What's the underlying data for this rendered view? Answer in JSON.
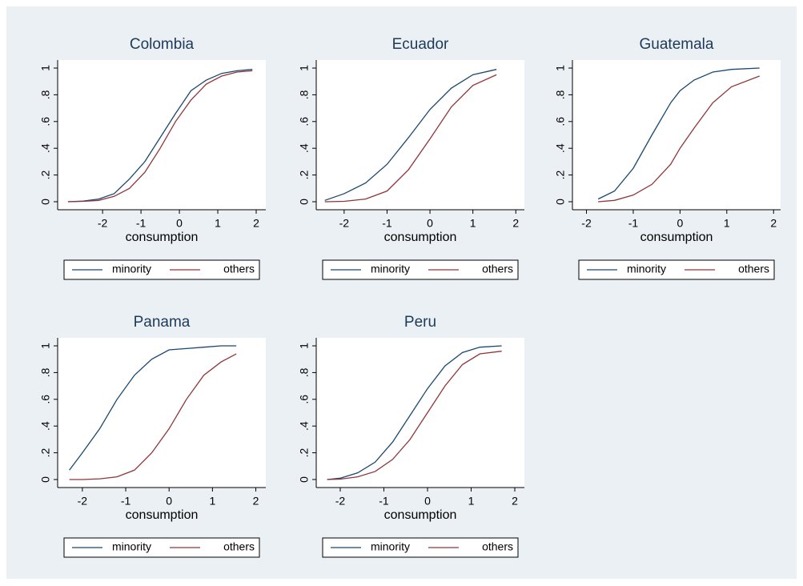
{
  "chart_data": [
    {
      "type": "line",
      "title": "Colombia",
      "x_label": "consumption",
      "x": [
        -2.9,
        -2.5,
        -2.1,
        -1.7,
        -1.3,
        -0.9,
        -0.5,
        -0.1,
        0.3,
        0.7,
        1.1,
        1.5,
        1.9
      ],
      "series": [
        {
          "name": "minority",
          "color": "#1a476f",
          "values": [
            0,
            0.005,
            0.02,
            0.06,
            0.17,
            0.3,
            0.48,
            0.66,
            0.83,
            0.91,
            0.96,
            0.98,
            0.99
          ]
        },
        {
          "name": "others",
          "color": "#90353b",
          "values": [
            0,
            0.003,
            0.01,
            0.04,
            0.1,
            0.22,
            0.4,
            0.6,
            0.76,
            0.88,
            0.94,
            0.97,
            0.98
          ]
        }
      ],
      "xlim": [
        -3.17,
        2.25
      ],
      "xticks": [
        -2,
        -1,
        0,
        1,
        2
      ],
      "ylim": [
        -0.06,
        1.06
      ],
      "yticks": [
        0,
        {
          "value": 0.2,
          "label": ".2"
        },
        {
          "value": 0.4,
          "label": ".4"
        },
        {
          "value": 0.6,
          "label": ".6"
        },
        {
          "value": 0.8,
          "label": ".8"
        },
        1
      ]
    },
    {
      "type": "line",
      "title": "Ecuador",
      "x_label": "consumption",
      "x": [
        -2.45,
        -2,
        -1.5,
        -1,
        -0.5,
        0,
        0.5,
        1,
        1.55
      ],
      "series": [
        {
          "name": "minority",
          "color": "#1a476f",
          "values": [
            0.01,
            0.06,
            0.14,
            0.28,
            0.48,
            0.69,
            0.85,
            0.95,
            0.99
          ]
        },
        {
          "name": "others",
          "color": "#90353b",
          "values": [
            0,
            0.003,
            0.02,
            0.08,
            0.24,
            0.47,
            0.71,
            0.87,
            0.95
          ]
        }
      ],
      "xlim": [
        -2.65,
        2.2
      ],
      "xticks": [
        -2,
        -1,
        0,
        1,
        2
      ],
      "ylim": [
        -0.06,
        1.06
      ],
      "yticks": [
        0,
        {
          "value": 0.2,
          "label": ".2"
        },
        {
          "value": 0.4,
          "label": ".4"
        },
        {
          "value": 0.6,
          "label": ".6"
        },
        {
          "value": 0.8,
          "label": ".8"
        },
        1
      ]
    },
    {
      "type": "line",
      "title": "Guatemala",
      "x_label": "consumption",
      "x": [
        -1.75,
        -1.4,
        -1,
        -0.6,
        -0.2,
        0,
        0.3,
        0.7,
        1.1,
        1.7
      ],
      "series": [
        {
          "name": "minority",
          "color": "#1a476f",
          "values": [
            0.02,
            0.08,
            0.25,
            0.5,
            0.74,
            0.83,
            0.91,
            0.97,
            0.99,
            1.0
          ]
        },
        {
          "name": "others",
          "color": "#90353b",
          "values": [
            0,
            0.01,
            0.05,
            0.13,
            0.28,
            0.4,
            0.55,
            0.74,
            0.86,
            0.94
          ]
        }
      ],
      "xlim": [
        -2.3,
        2.15
      ],
      "xticks": [
        -2,
        -1,
        0,
        1,
        2
      ],
      "ylim": [
        -0.06,
        1.06
      ],
      "yticks": [
        0,
        {
          "value": 0.2,
          "label": ".2"
        },
        {
          "value": 0.4,
          "label": ".4"
        },
        {
          "value": 0.6,
          "label": ".6"
        },
        {
          "value": 0.8,
          "label": ".8"
        },
        1
      ]
    },
    {
      "type": "line",
      "title": "Panama",
      "x_label": "consumption",
      "x": [
        -2.3,
        -2,
        -1.6,
        -1.2,
        -0.8,
        -0.4,
        0,
        0.4,
        0.8,
        1.2,
        1.55
      ],
      "series": [
        {
          "name": "minority",
          "color": "#1a476f",
          "values": [
            0.07,
            0.2,
            0.38,
            0.6,
            0.78,
            0.9,
            0.97,
            0.98,
            0.99,
            1.0,
            1.0
          ]
        },
        {
          "name": "others",
          "color": "#90353b",
          "values": [
            0,
            0,
            0.005,
            0.02,
            0.07,
            0.2,
            0.38,
            0.6,
            0.78,
            0.88,
            0.94
          ]
        }
      ],
      "xlim": [
        -2.57,
        2.23
      ],
      "xticks": [
        -2,
        -1,
        0,
        1,
        2
      ],
      "ylim": [
        -0.06,
        1.06
      ],
      "yticks": [
        0,
        {
          "value": 0.2,
          "label": ".2"
        },
        {
          "value": 0.4,
          "label": ".4"
        },
        {
          "value": 0.6,
          "label": ".6"
        },
        {
          "value": 0.8,
          "label": ".8"
        },
        1
      ]
    },
    {
      "type": "line",
      "title": "Peru",
      "x_label": "consumption",
      "x": [
        -2.3,
        -2,
        -1.6,
        -1.2,
        -0.8,
        -0.4,
        0,
        0.4,
        0.8,
        1.2,
        1.7
      ],
      "series": [
        {
          "name": "minority",
          "color": "#1a476f",
          "values": [
            0,
            0.01,
            0.05,
            0.13,
            0.28,
            0.48,
            0.68,
            0.85,
            0.95,
            0.99,
            1.0
          ]
        },
        {
          "name": "others",
          "color": "#90353b",
          "values": [
            0,
            0.003,
            0.02,
            0.06,
            0.15,
            0.3,
            0.5,
            0.7,
            0.86,
            0.94,
            0.96
          ]
        }
      ],
      "xlim": [
        -2.55,
        2.22
      ],
      "xticks": [
        -2,
        -1,
        0,
        1,
        2
      ],
      "ylim": [
        -0.06,
        1.06
      ],
      "yticks": [
        0,
        {
          "value": 0.2,
          "label": ".2"
        },
        {
          "value": 0.4,
          "label": ".4"
        },
        {
          "value": 0.6,
          "label": ".6"
        },
        {
          "value": 0.8,
          "label": ".8"
        },
        1
      ]
    }
  ]
}
